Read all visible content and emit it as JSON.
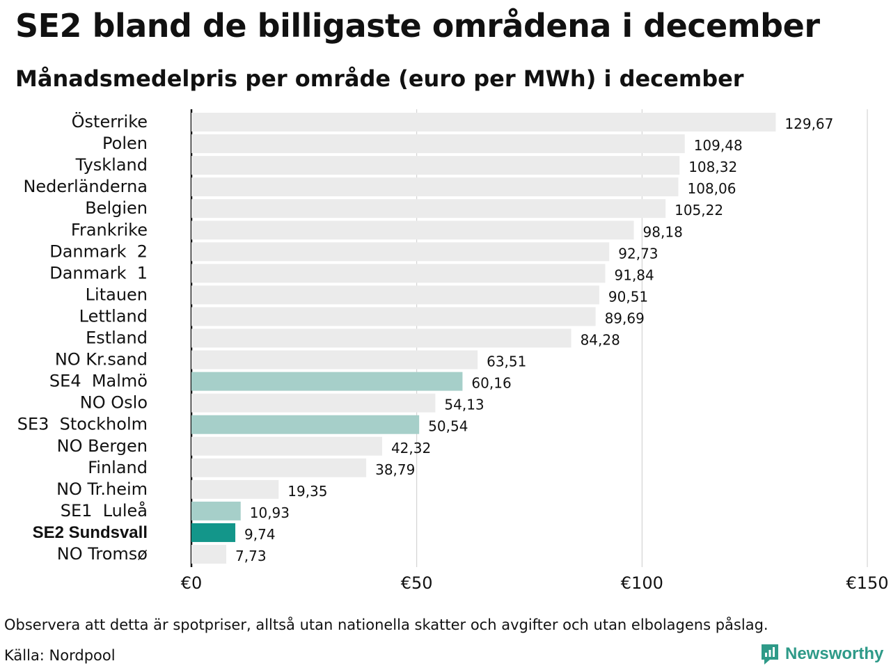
{
  "title": "SE2 bland de billigaste områdena i december",
  "subtitle": "Månadsmedelpris per område (euro per MWh) i december",
  "note": "Observera att detta är spotpriser, alltså utan nationella skatter och avgifter och utan elbolagens påslag.",
  "source": "Källa: Nordpool",
  "brand": {
    "name": "Newsworthy",
    "icon": "newsworthy-logo-icon"
  },
  "colors": {
    "default": "#ebebeb",
    "highlight": "#a6cfc9",
    "focus": "#13968a",
    "grid": "#cccccc",
    "axis": "#111111"
  },
  "chart_data": {
    "type": "bar",
    "orientation": "horizontal",
    "categories": [
      "Österrike",
      "Polen",
      "Tyskland",
      "Nederländerna",
      "Belgien",
      "Frankrike",
      "Danmark  2",
      "Danmark  1",
      "Litauen",
      "Lettland",
      "Estland",
      "NO Kr.sand",
      "SE4  Malmö",
      "NO Oslo",
      "SE3  Stockholm",
      "NO Bergen",
      "Finland",
      "NO Tr.heim",
      "SE1  Luleå",
      "SE2 Sundsvall",
      "NO Tromsø"
    ],
    "values": [
      129.67,
      109.48,
      108.32,
      108.06,
      105.22,
      98.18,
      92.73,
      91.84,
      90.51,
      89.69,
      84.28,
      63.51,
      60.16,
      54.13,
      50.54,
      42.32,
      38.79,
      19.35,
      10.93,
      9.74,
      7.73
    ],
    "value_labels": [
      "129,67",
      "109,48",
      "108,32",
      "108,06",
      "105,22",
      "98,18",
      "92,73",
      "91,84",
      "90,51",
      "89,69",
      "84,28",
      "63,51",
      "60,16",
      "54,13",
      "50,54",
      "42,32",
      "38,79",
      "19,35",
      "10,93",
      "9,74",
      "7,73"
    ],
    "highlight": [
      "SE4  Malmö",
      "SE3  Stockholm",
      "SE1  Luleå"
    ],
    "focus": "SE2 Sundsvall",
    "xlim": [
      0,
      150
    ],
    "xticks": [
      0,
      50,
      100,
      150
    ],
    "xtick_labels": [
      "€0",
      "€50",
      "€100",
      "€150"
    ],
    "grid": true,
    "legend": "none"
  }
}
